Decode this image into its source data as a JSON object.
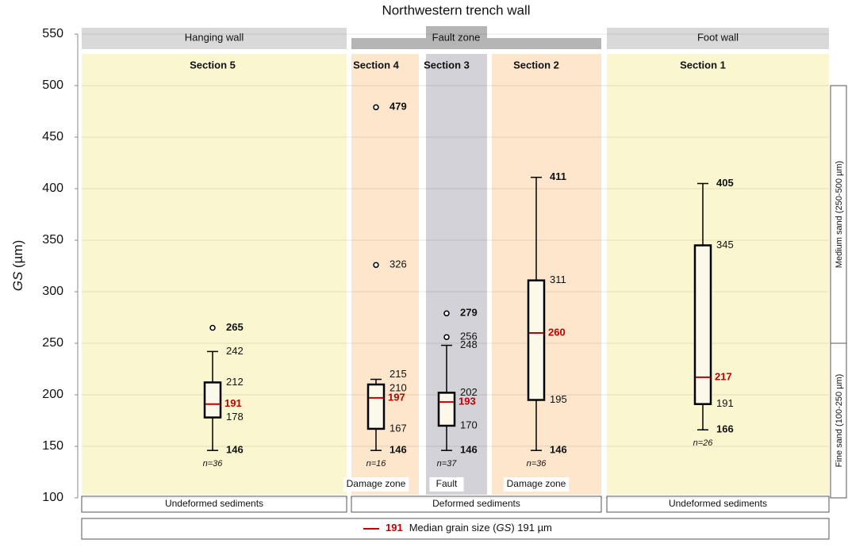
{
  "chart_data": {
    "type": "box",
    "title": "Northwestern trench wall",
    "ylabel": {
      "symbol": "GS",
      "unit": "(µm)"
    },
    "ylim": [
      100,
      550
    ],
    "yticks": [
      100,
      150,
      200,
      250,
      300,
      350,
      400,
      450,
      500,
      550
    ],
    "grid": true,
    "median_color": "#c00000",
    "groups": [
      "Hanging wall",
      "Fault zone",
      "Foot wall"
    ],
    "sediments": [
      "Undeformed sediments",
      "Deformed sediments",
      "Undeformed sediments"
    ],
    "series": [
      {
        "name": "Section 5",
        "color": "#faf6cf",
        "zone": null,
        "whisker_low": 146,
        "q1": 178,
        "median": 191,
        "q3": 212,
        "whisker_high": 242,
        "outliers": [
          265
        ],
        "n_label": "n=36"
      },
      {
        "name": "Section 4",
        "color": "#fde6cc",
        "zone": "Damage zone",
        "whisker_low": 146,
        "q1": 167,
        "median": 197,
        "q3": 210,
        "whisker_high": 215,
        "outliers": [
          326,
          479
        ],
        "n_label": "n=16"
      },
      {
        "name": "Section 3",
        "color": "#d4d2d9",
        "zone": "Fault",
        "whisker_low": 146,
        "q1": 170,
        "median": 193,
        "q3": 202,
        "whisker_high": 248,
        "outliers": [
          256,
          279
        ],
        "n_label": "n=37"
      },
      {
        "name": "Section 2",
        "color": "#fde6cc",
        "zone": "Damage zone",
        "whisker_low": 146,
        "q1": 195,
        "median": 260,
        "q3": 311,
        "whisker_high": 411,
        "outliers": [],
        "n_label": "n=36"
      },
      {
        "name": "Section 1",
        "color": "#faf6cf",
        "zone": null,
        "whisker_low": 166,
        "q1": 191,
        "median": 217,
        "q3": 345,
        "whisker_high": 405,
        "outliers": [],
        "n_label": "n=26"
      }
    ],
    "ranges": [
      {
        "label": "Medium sand (250-500 µm)",
        "from": 250,
        "to": 500
      },
      {
        "label": "Fine sand (100-250 µm)",
        "from": 100,
        "to": 250
      }
    ],
    "legend": {
      "sample": 191,
      "before": "Median grain size (",
      "symbol": "GS",
      "after": ") 191 µm"
    }
  }
}
